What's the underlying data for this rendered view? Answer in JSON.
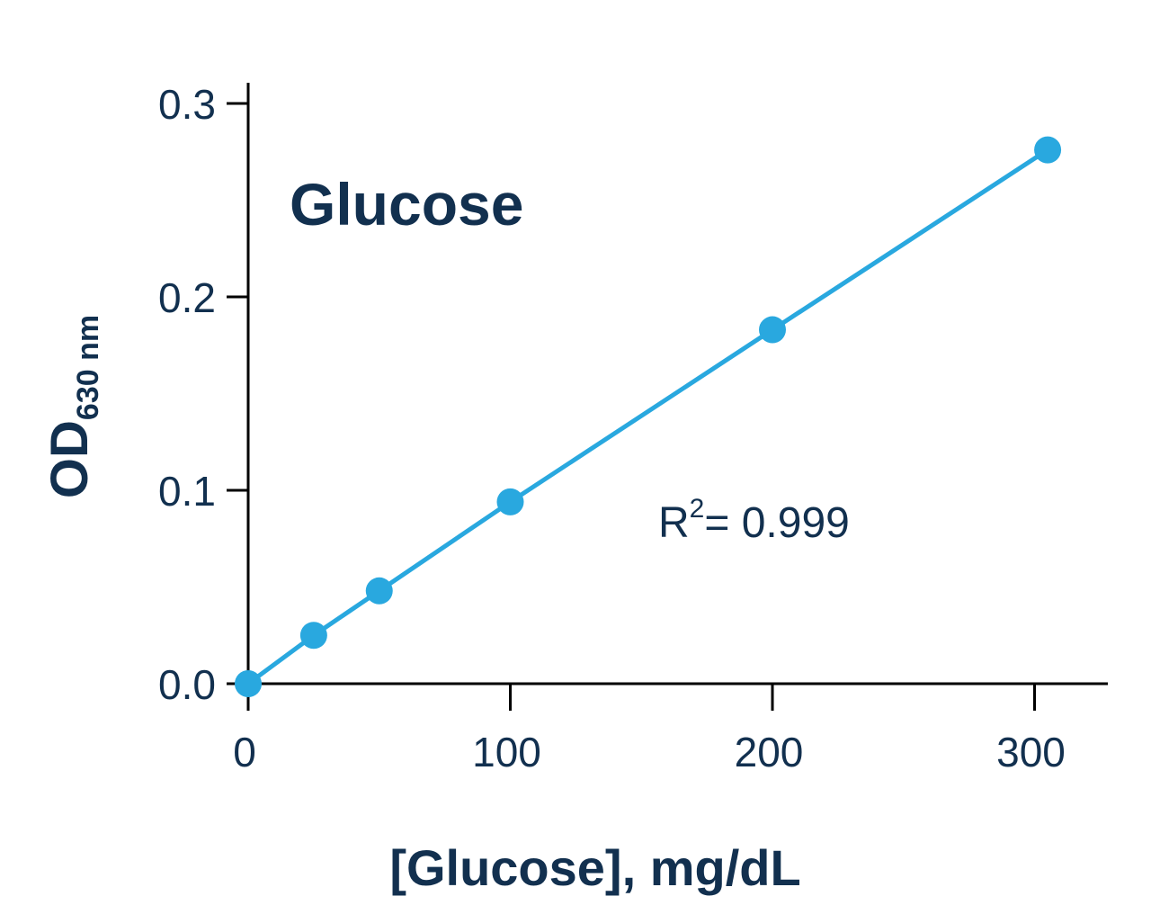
{
  "chart_data": {
    "type": "line",
    "title": "Glucose",
    "xlabel": "[Glucose], mg/dL",
    "ylabel": "OD",
    "ylabel_subscript": "630 nm",
    "xlim": [
      0,
      330
    ],
    "ylim": [
      0,
      0.31
    ],
    "xticks": [
      "0",
      "100",
      "200",
      "300"
    ],
    "yticks": [
      "0.0",
      "0.1",
      "0.2",
      "0.3"
    ],
    "grid": false,
    "legend": "none",
    "color": "#29a8df",
    "series": [
      {
        "x": [
          0,
          25,
          50,
          100,
          200,
          305
        ],
        "y": [
          0.0,
          0.025,
          0.048,
          0.094,
          0.183,
          0.276
        ]
      }
    ],
    "annotation": {
      "prefix": "R",
      "superscript": "2",
      "text": "= 0.999"
    }
  }
}
